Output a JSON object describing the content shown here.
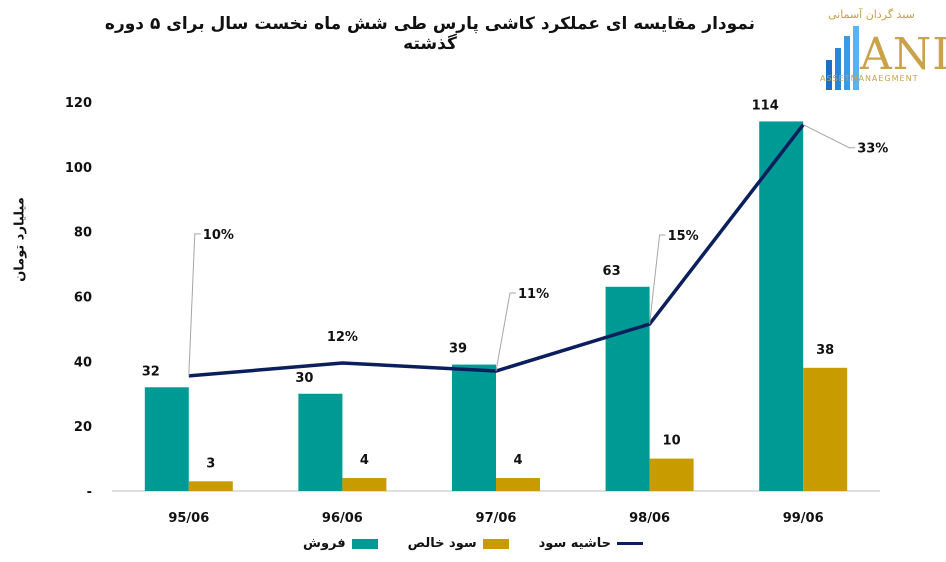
{
  "header": {
    "title": "نمودار مقایسه ای عملکرد کاشی پارس طی شش ماه نخست سال برای ۵ دوره گذشته"
  },
  "logo": {
    "tagline": "سبد گردان آسمانی",
    "wordmark": "ANI",
    "sub": "ASSETMANAEGMENT"
  },
  "chart_data": {
    "type": "bar",
    "categories": [
      "95/06",
      "96/06",
      "97/06",
      "98/06",
      "99/06"
    ],
    "series": [
      {
        "name": "فروش",
        "values": [
          32,
          30,
          39,
          63,
          114
        ],
        "color": "#009a95",
        "kind": "bar"
      },
      {
        "name": "سود خالص",
        "values": [
          3,
          4,
          4,
          10,
          38
        ],
        "color": "#c89c00",
        "kind": "bar"
      },
      {
        "name": "حاشیه سود",
        "values": [
          10,
          12,
          11,
          15,
          33
        ],
        "labels": [
          "10%",
          "12%",
          "11%",
          "15%",
          "33%"
        ],
        "color": "#0b1f5c",
        "kind": "line"
      }
    ],
    "ylabel": "میلیارد تومان",
    "ylim": [
      0,
      120
    ],
    "yticks": [
      "-",
      "20",
      "40",
      "60",
      "80",
      "100",
      "120"
    ],
    "grid": false,
    "legend": "bottom"
  }
}
